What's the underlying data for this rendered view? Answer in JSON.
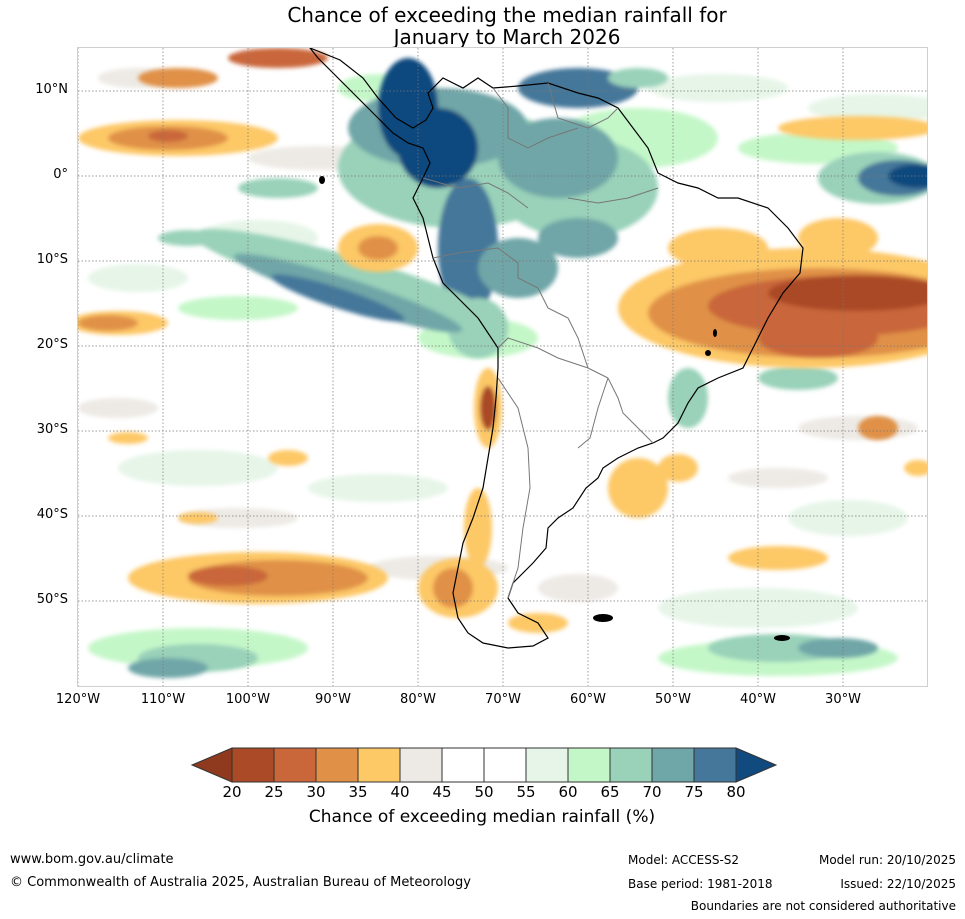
{
  "title": {
    "line1": "Chance of exceeding the median rainfall for",
    "line2": "January to March 2026"
  },
  "map": {
    "region": "South America",
    "lat_labels": [
      "10°N",
      "0°",
      "10°S",
      "20°S",
      "30°S",
      "40°S",
      "50°S"
    ],
    "lon_labels": [
      "120°W",
      "110°W",
      "100°W",
      "90°W",
      "80°W",
      "70°W",
      "60°W",
      "50°W",
      "40°W",
      "30°W"
    ]
  },
  "legend": {
    "ticks": [
      "20",
      "25",
      "30",
      "35",
      "40",
      "45",
      "50",
      "55",
      "60",
      "65",
      "70",
      "75",
      "80"
    ],
    "title": "Chance of exceeding median rainfall (%)",
    "colors": [
      "#8f3a1f",
      "#aa4a27",
      "#c9663a",
      "#e09147",
      "#fdc866",
      "#edeae5",
      "#ffffff",
      "#ffffff",
      "#e6f5e8",
      "#c4f7c8",
      "#99d1b9",
      "#6fa6a7",
      "#44779a",
      "#104a7e"
    ]
  },
  "footer": {
    "website": "www.bom.gov.au/climate",
    "copyright": "© Commonwealth of Australia 2025, Australian Bureau of Meteorology",
    "model": "Model: ACCESS-S2",
    "base_period": "Base period: 1981-2018",
    "model_run": "Model run: 20/10/2025",
    "issued": "Issued: 22/10/2025",
    "disclaimer": "Boundaries are not considered authoritative"
  }
}
